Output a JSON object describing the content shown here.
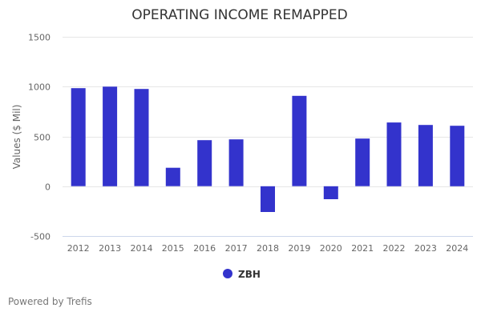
{
  "chart_data": {
    "type": "bar",
    "title": "OPERATING INCOME REMAPPED",
    "xlabel": "",
    "ylabel": "Values ($ Mil)",
    "ylim": [
      -500,
      1500
    ],
    "yticks": [
      1500,
      1000,
      500,
      0,
      -500
    ],
    "ytick_labels": [
      "1500",
      "1000",
      "500",
      "0",
      "-500"
    ],
    "grid": true,
    "legend_position": "bottom-center",
    "categories": [
      "2012",
      "2013",
      "2014",
      "2015",
      "2016",
      "2017",
      "2018",
      "2019",
      "2020",
      "2021",
      "2022",
      "2023",
      "2024"
    ],
    "series": [
      {
        "name": "ZBH",
        "color": "#3333cc",
        "values": [
          984,
          1000,
          976,
          185,
          462,
          470,
          -259,
          907,
          -130,
          478,
          640,
          615,
          607
        ]
      }
    ]
  },
  "footer": {
    "credit": "Powered by Trefis"
  }
}
